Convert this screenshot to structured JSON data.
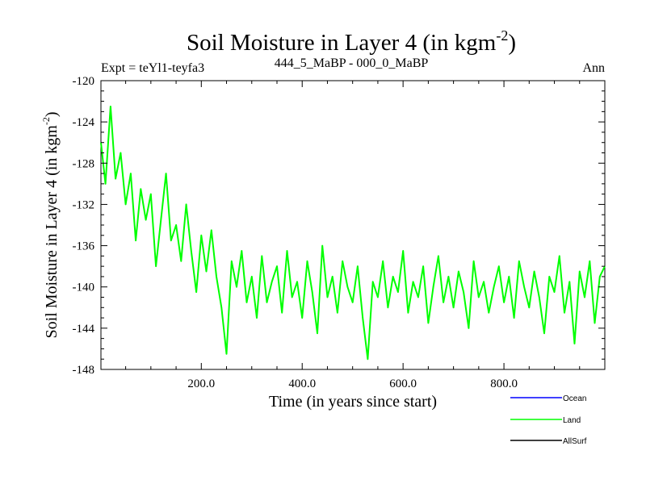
{
  "chart_data": {
    "type": "line",
    "title_main": "Soil Moisture in Layer 4 (in kgm",
    "title_sup": "-2",
    "title_close": ")",
    "expt_label": "Expt = teYl1-teyfa3",
    "subtitle": "444_5_MaBP - 000_0_MaBP",
    "season": "Ann",
    "xlabel": "Time (in years since start)",
    "ylabel_main": "Soil Moisture in Layer 4 (in kgm",
    "ylabel_sup": "-2",
    "ylabel_close": ")",
    "xlim": [
      1,
      1000
    ],
    "ylim": [
      -148,
      -120
    ],
    "x_ticks": [
      200,
      400,
      600,
      800
    ],
    "x_tick_labels": [
      "200.0",
      "400.0",
      "600.0",
      "800.0"
    ],
    "y_ticks": [
      -120,
      -124,
      -128,
      -132,
      -136,
      -140,
      -144,
      -148
    ],
    "y_tick_labels": [
      "-120",
      "-124",
      "-128",
      "-132",
      "-136",
      "-140",
      "-144",
      "-148"
    ],
    "legend": [
      {
        "name": "Ocean",
        "color": "#0000ff"
      },
      {
        "name": "Land",
        "color": "#00ff00"
      },
      {
        "name": "AllSurf",
        "color": "#000000"
      }
    ],
    "series": [
      {
        "name": "Land",
        "color": "#00ff00",
        "x": [
          1,
          10,
          20,
          30,
          40,
          50,
          60,
          70,
          80,
          90,
          100,
          110,
          120,
          130,
          140,
          150,
          160,
          170,
          180,
          190,
          200,
          210,
          220,
          230,
          240,
          250,
          260,
          270,
          280,
          290,
          300,
          310,
          320,
          330,
          340,
          350,
          360,
          370,
          380,
          390,
          400,
          410,
          420,
          430,
          440,
          450,
          460,
          470,
          480,
          490,
          500,
          510,
          520,
          530,
          540,
          550,
          560,
          570,
          580,
          590,
          600,
          610,
          620,
          630,
          640,
          650,
          660,
          670,
          680,
          690,
          700,
          710,
          720,
          730,
          740,
          750,
          760,
          770,
          780,
          790,
          800,
          810,
          820,
          830,
          840,
          850,
          860,
          870,
          880,
          890,
          900,
          910,
          920,
          930,
          940,
          950,
          960,
          970,
          980,
          990,
          1000
        ],
        "values": [
          -126.0,
          -130.0,
          -122.5,
          -129.5,
          -127.0,
          -132.0,
          -129.0,
          -135.5,
          -130.5,
          -133.5,
          -131.0,
          -138.0,
          -133.5,
          -129.0,
          -135.5,
          -134.0,
          -137.5,
          -132.0,
          -136.5,
          -140.5,
          -135.0,
          -138.5,
          -134.5,
          -139.0,
          -142.0,
          -146.5,
          -137.5,
          -140.0,
          -136.5,
          -141.5,
          -139.0,
          -143.0,
          -137.0,
          -141.5,
          -139.5,
          -138.0,
          -142.5,
          -136.5,
          -141.0,
          -139.5,
          -143.0,
          -137.5,
          -140.5,
          -144.5,
          -136.0,
          -141.0,
          -139.0,
          -142.5,
          -137.5,
          -140.0,
          -141.5,
          -138.0,
          -143.0,
          -147.0,
          -139.5,
          -141.0,
          -137.5,
          -142.0,
          -139.0,
          -140.5,
          -136.5,
          -142.5,
          -139.5,
          -141.0,
          -138.0,
          -143.5,
          -140.0,
          -137.0,
          -141.5,
          -139.0,
          -142.0,
          -138.5,
          -140.5,
          -144.0,
          -137.5,
          -141.0,
          -139.5,
          -142.5,
          -140.0,
          -138.0,
          -141.5,
          -139.0,
          -143.0,
          -137.5,
          -140.0,
          -142.0,
          -138.5,
          -141.0,
          -144.5,
          -139.0,
          -140.5,
          -137.0,
          -142.5,
          -139.5,
          -145.5,
          -138.5,
          -141.0,
          -137.5,
          -143.5,
          -139.0,
          -138.0
        ]
      }
    ]
  }
}
